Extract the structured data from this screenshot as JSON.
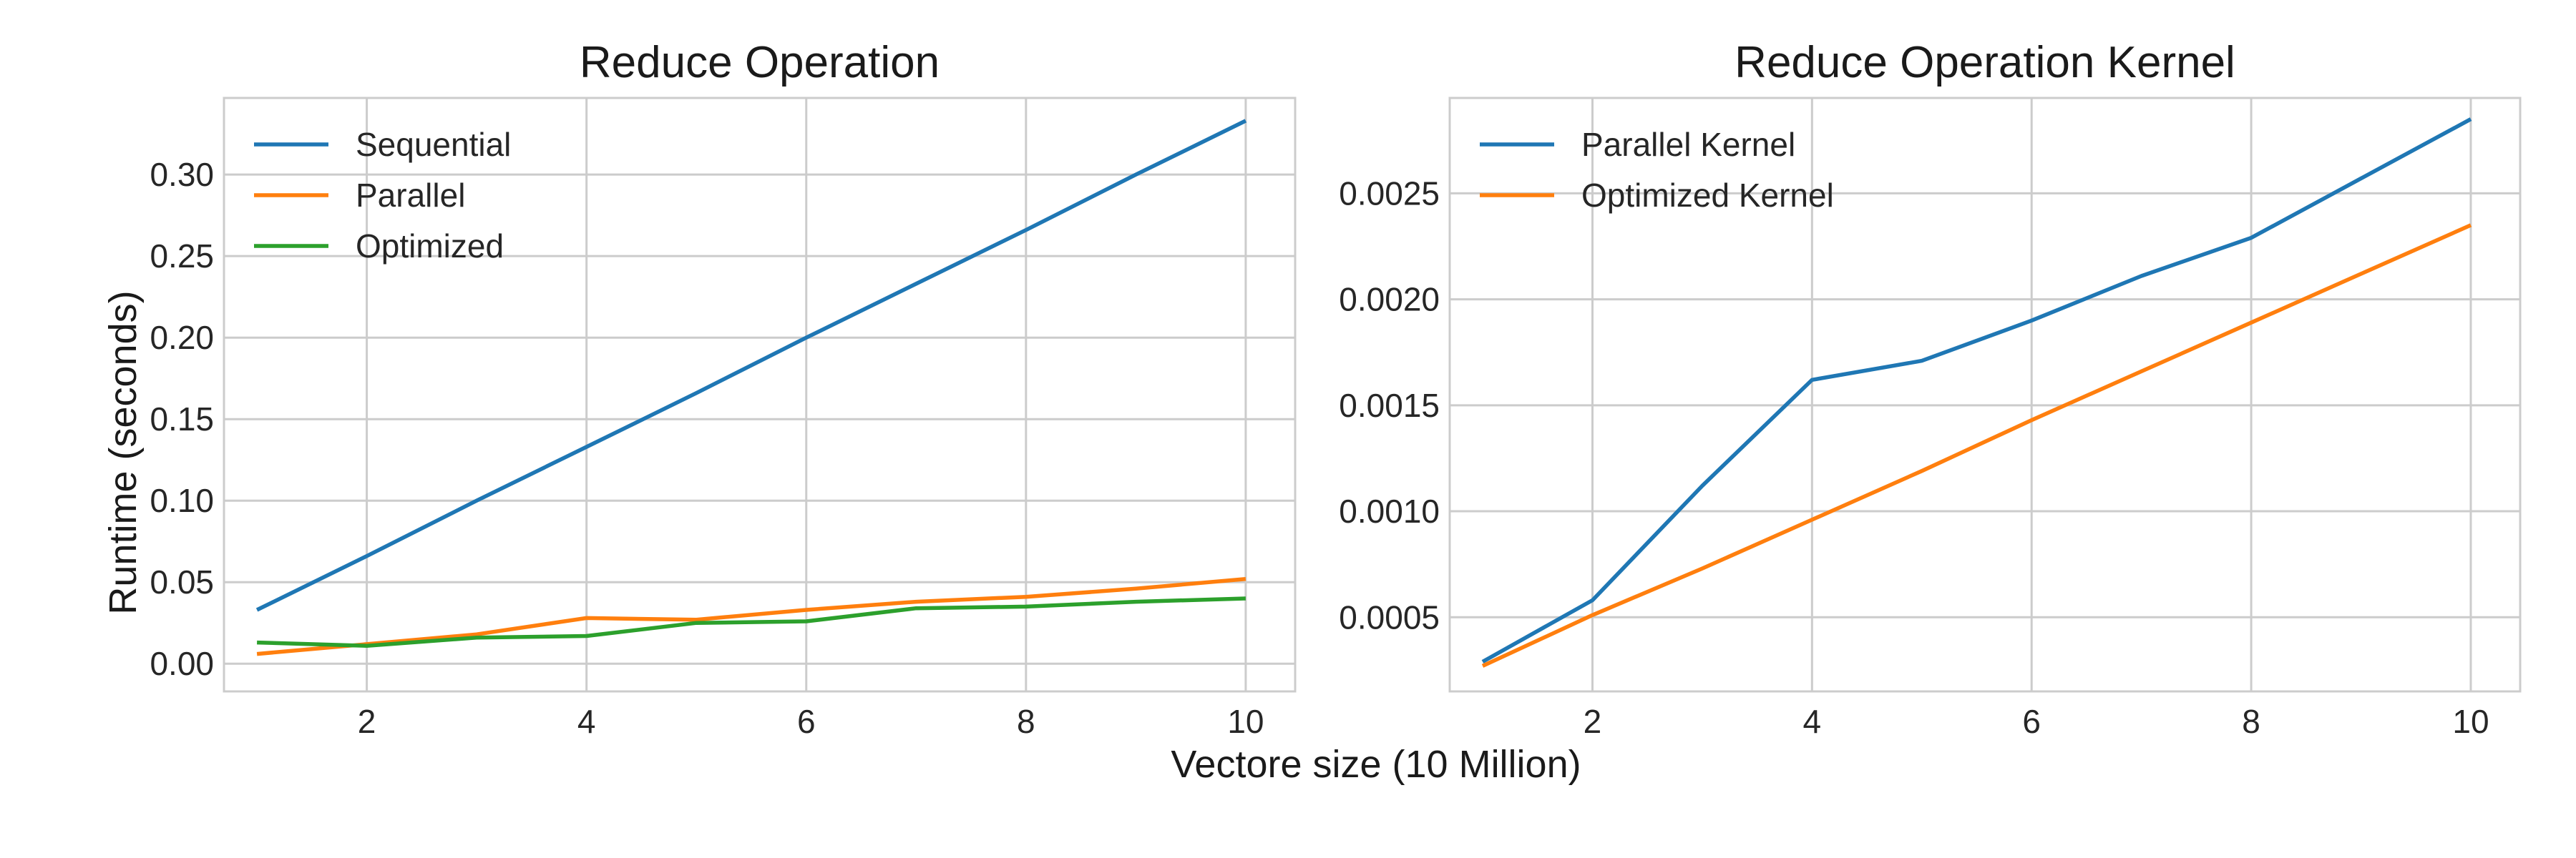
{
  "figure": {
    "xlabel": "Vectore size (10 Million)",
    "ylabel": "Runtime (seconds)"
  },
  "chart_data": [
    {
      "type": "line",
      "title": "Reduce Operation",
      "xlim": [
        0.7,
        10.45
      ],
      "ylim": [
        -0.017,
        0.347
      ],
      "x_ticks": [
        2,
        4,
        6,
        8,
        10
      ],
      "x_tick_labels": [
        "2",
        "4",
        "6",
        "8",
        "10"
      ],
      "y_ticks": [
        0,
        0.05,
        0.1,
        0.15,
        0.2,
        0.25,
        0.3
      ],
      "y_tick_labels": [
        "0.00",
        "0.05",
        "0.10",
        "0.15",
        "0.20",
        "0.25",
        "0.30"
      ],
      "grid": true,
      "legend_position": "upper-left",
      "x": [
        1,
        2,
        3,
        4,
        5,
        6,
        7,
        8,
        9,
        10
      ],
      "series": [
        {
          "name": "Sequential",
          "color": "#1f77b4",
          "values": [
            0.033,
            0.066,
            0.1,
            0.133,
            0.166,
            0.2,
            0.233,
            0.266,
            0.3,
            0.333
          ]
        },
        {
          "name": "Parallel",
          "color": "#ff7f0e",
          "values": [
            0.006,
            0.012,
            0.018,
            0.028,
            0.027,
            0.033,
            0.038,
            0.041,
            0.046,
            0.052
          ]
        },
        {
          "name": "Optimized",
          "color": "#2ca02c",
          "values": [
            0.013,
            0.011,
            0.016,
            0.017,
            0.025,
            0.026,
            0.034,
            0.035,
            0.038,
            0.04
          ]
        }
      ]
    },
    {
      "type": "line",
      "title": "Reduce Operation Kernel",
      "xlim": [
        0.7,
        10.45
      ],
      "ylim": [
        0.00015,
        0.00295
      ],
      "x_ticks": [
        2,
        4,
        6,
        8,
        10
      ],
      "x_tick_labels": [
        "2",
        "4",
        "6",
        "8",
        "10"
      ],
      "y_ticks": [
        0.0005,
        0.001,
        0.0015,
        0.002,
        0.0025
      ],
      "y_tick_labels": [
        "0.0005",
        "0.0010",
        "0.0015",
        "0.0020",
        "0.0025"
      ],
      "grid": true,
      "legend_position": "upper-left",
      "x": [
        1,
        2,
        3,
        4,
        5,
        6,
        7,
        8,
        9,
        10
      ],
      "series": [
        {
          "name": "Parallel Kernel",
          "color": "#1f77b4",
          "values": [
            0.00029,
            0.00058,
            0.00112,
            0.00162,
            0.00171,
            0.0019,
            0.00211,
            0.00229,
            0.00257,
            0.00285
          ]
        },
        {
          "name": "Optimized Kernel",
          "color": "#ff7f0e",
          "values": [
            0.00027,
            0.00051,
            0.00073,
            0.00096,
            0.00119,
            0.00143,
            0.00166,
            0.00189,
            0.00212,
            0.00235
          ]
        }
      ]
    }
  ]
}
